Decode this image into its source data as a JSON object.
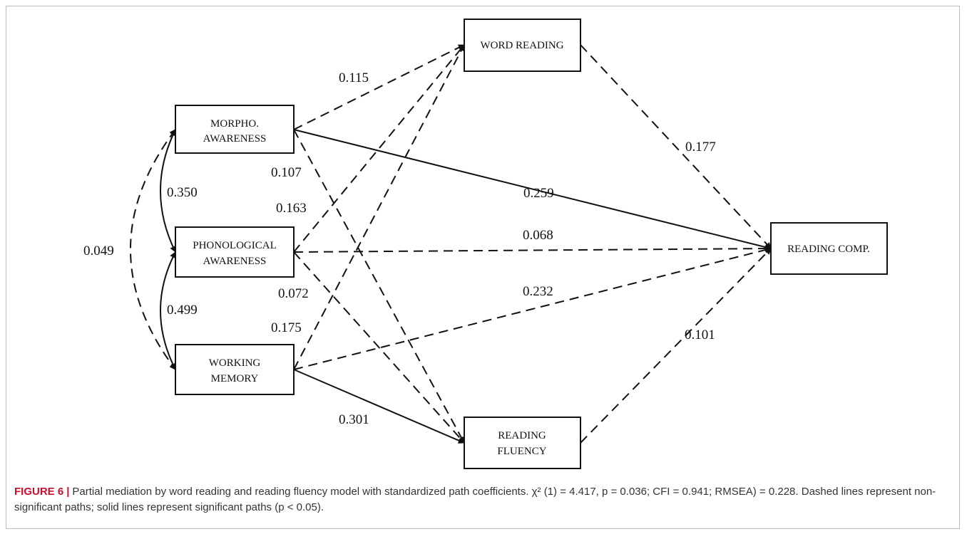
{
  "nodes": {
    "morpho": {
      "lines": [
        "MORPHO.",
        "AWARENESS"
      ]
    },
    "phono": {
      "lines": [
        "PHONOLOGICAL",
        "AWARENESS"
      ]
    },
    "wm": {
      "lines": [
        "WORKING",
        "MEMORY"
      ]
    },
    "word": {
      "lines": [
        "WORD READING"
      ]
    },
    "fluency": {
      "lines": [
        "READING",
        "FLUENCY"
      ]
    },
    "comp": {
      "lines": [
        "READING COMP."
      ]
    }
  },
  "paths": [
    {
      "id": "morpho-word",
      "from": "morpho",
      "to": "word",
      "coefficient": "0.115",
      "significant": false
    },
    {
      "id": "morpho-comp",
      "from": "morpho",
      "to": "comp",
      "coefficient": "0.259",
      "significant": true
    },
    {
      "id": "morpho-fluency",
      "from": "morpho",
      "to": "fluency",
      "coefficient": "0.107",
      "significant": false
    },
    {
      "id": "phono-word",
      "from": "phono",
      "to": "word",
      "coefficient": "0.163",
      "significant": false
    },
    {
      "id": "phono-comp",
      "from": "phono",
      "to": "comp",
      "coefficient": "0.068",
      "significant": false
    },
    {
      "id": "phono-fluency",
      "from": "phono",
      "to": "fluency",
      "coefficient": "0.072",
      "significant": false
    },
    {
      "id": "wm-word",
      "from": "wm",
      "to": "word",
      "coefficient": "0.175",
      "significant": false
    },
    {
      "id": "wm-comp",
      "from": "wm",
      "to": "comp",
      "coefficient": "0.232",
      "significant": false
    },
    {
      "id": "wm-fluency",
      "from": "wm",
      "to": "fluency",
      "coefficient": "0.301",
      "significant": true
    },
    {
      "id": "word-comp",
      "from": "word",
      "to": "comp",
      "coefficient": "0.177",
      "significant": false
    },
    {
      "id": "fluency-comp",
      "from": "fluency",
      "to": "comp",
      "coefficient": "0.101",
      "significant": false
    }
  ],
  "correlations": [
    {
      "id": "morpho-phono",
      "between": [
        "morpho",
        "phono"
      ],
      "coefficient": "0.350",
      "significant": true
    },
    {
      "id": "phono-wm",
      "between": [
        "phono",
        "wm"
      ],
      "coefficient": "0.499",
      "significant": true
    },
    {
      "id": "morpho-wm",
      "between": [
        "morpho",
        "wm"
      ],
      "coefficient": "0.049",
      "significant": false
    }
  ],
  "caption": {
    "label": "FIGURE 6",
    "separator": "|",
    "text": "Partial mediation by word reading and reading fluency model with standardized path coefficients. χ² (1) = 4.417, p = 0.036; CFI = 0.941; RMSEA) = 0.228. Dashed lines represent non-significant paths; solid lines represent significant paths (p < 0.05)."
  }
}
